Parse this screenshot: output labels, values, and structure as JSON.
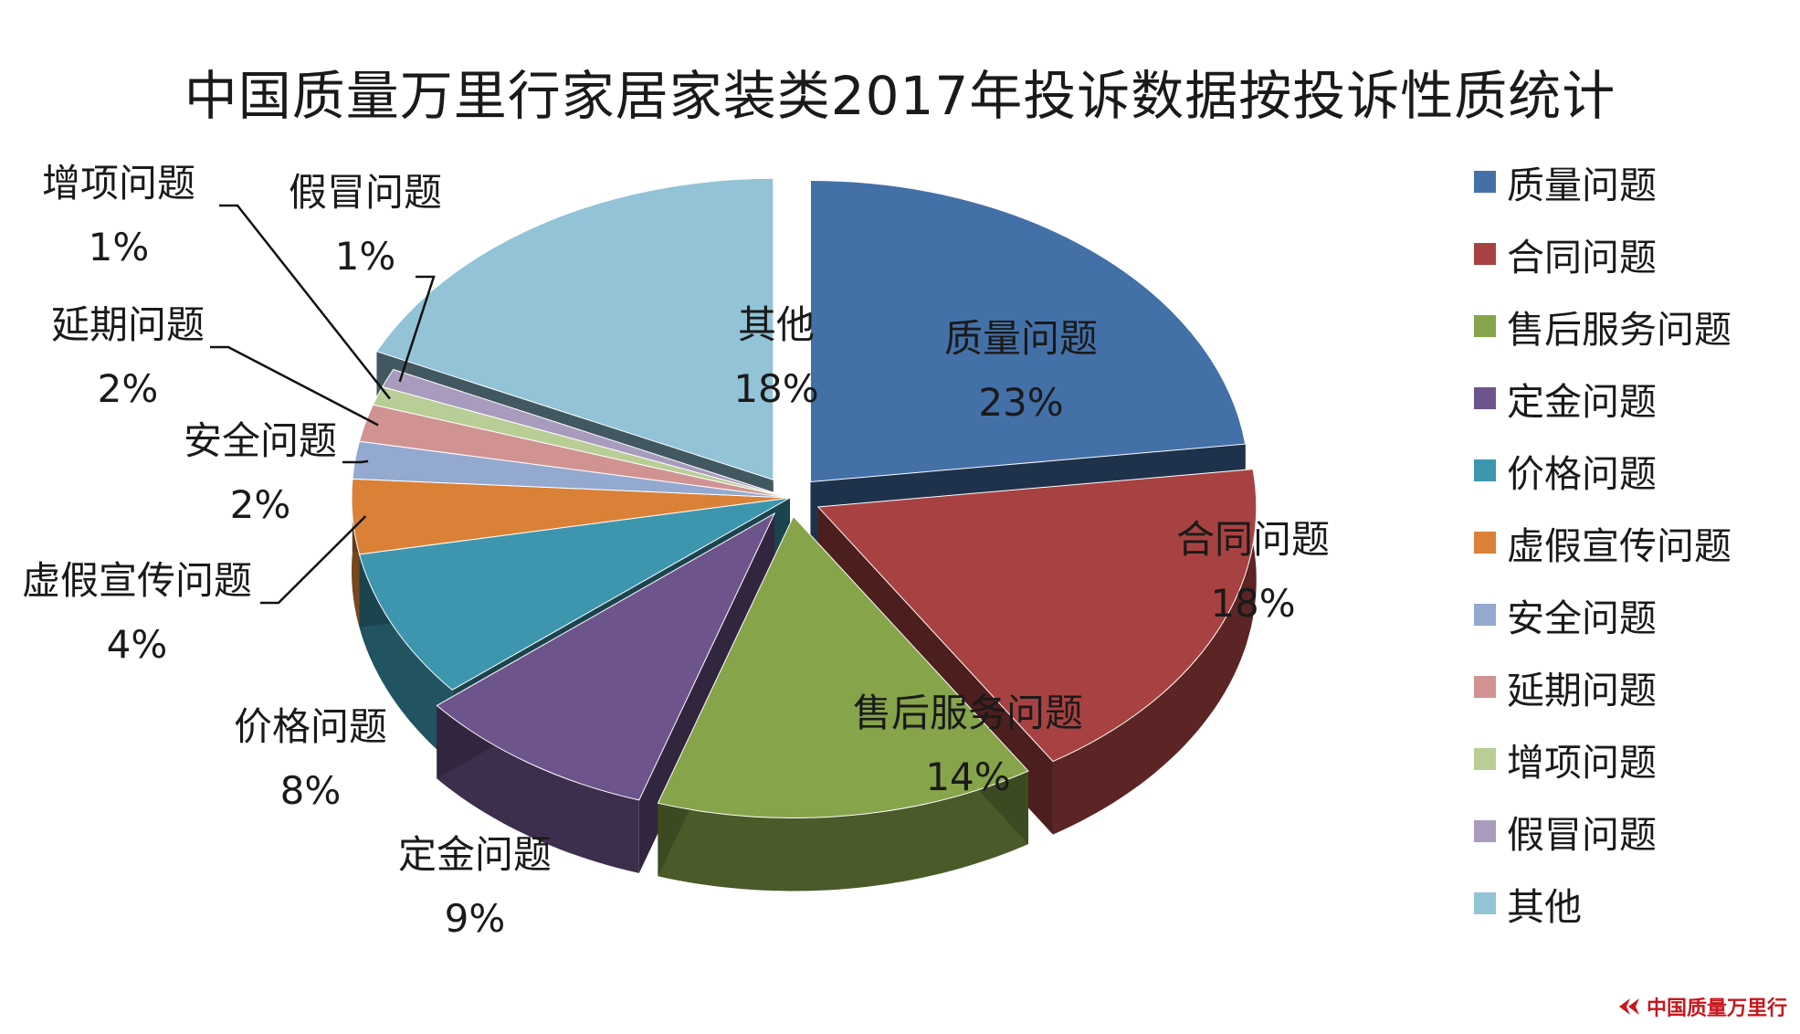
{
  "chart_data": {
    "type": "pie",
    "title": "中国质量万里行家居家装类2017年投诉数据按投诉性质统计",
    "legend_position": "right",
    "slices": [
      {
        "name": "质量问题",
        "value": 23,
        "label": "23%",
        "color": "#4470A8"
      },
      {
        "name": "合同问题",
        "value": 18,
        "label": "18%",
        "color": "#A84242"
      },
      {
        "name": "售后服务问题",
        "value": 14,
        "label": "14%",
        "color": "#86A44A"
      },
      {
        "name": "定金问题",
        "value": 9,
        "label": "9%",
        "color": "#6E548C"
      },
      {
        "name": "价格问题",
        "value": 8,
        "label": "8%",
        "color": "#3D96AE"
      },
      {
        "name": "虚假宣传问题",
        "value": 4,
        "label": "4%",
        "color": "#DA8137"
      },
      {
        "name": "安全问题",
        "value": 2,
        "label": "2%",
        "color": "#93A9CF"
      },
      {
        "name": "延期问题",
        "value": 2,
        "label": "2%",
        "color": "#D19392"
      },
      {
        "name": "增项问题",
        "value": 1,
        "label": "1%",
        "color": "#B9CD96"
      },
      {
        "name": "假冒问题",
        "value": 1,
        "label": "1%",
        "color": "#A99BBD"
      },
      {
        "name": "其他",
        "value": 18,
        "label": "18%",
        "color": "#92C3D6"
      }
    ]
  },
  "watermark": {
    "text": "中国质量万里行"
  }
}
